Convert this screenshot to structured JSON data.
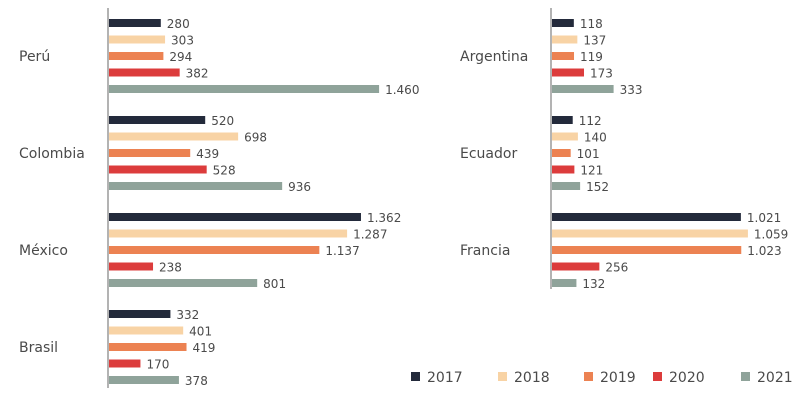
{
  "chart_data": {
    "type": "bar",
    "orientation": "horizontal",
    "title": "",
    "xlabel": "",
    "ylabel": "",
    "grid": false,
    "legend_position": "bottom-right",
    "series_names": [
      "2017",
      "2018",
      "2019",
      "2020",
      "2021"
    ],
    "colors": [
      "#232a3b",
      "#f8d3a5",
      "#ec8252",
      "#dc3c3c",
      "#8fa39a"
    ],
    "panels": [
      {
        "name": "left",
        "categories": [
          "Perú",
          "Colombia",
          "México",
          "Brasil"
        ],
        "series": [
          {
            "name": "2017",
            "values": [
              280,
              520,
              1362,
              332
            ],
            "labels": [
              "280",
              "520",
              "1.362",
              "332"
            ]
          },
          {
            "name": "2018",
            "values": [
              303,
              698,
              1287,
              401
            ],
            "labels": [
              "303",
              "698",
              "1.287",
              "401"
            ]
          },
          {
            "name": "2019",
            "values": [
              294,
              439,
              1137,
              419
            ],
            "labels": [
              "294",
              "439",
              "1.137",
              "419"
            ]
          },
          {
            "name": "2020",
            "values": [
              382,
              528,
              238,
              170
            ],
            "labels": [
              "382",
              "528",
              "238",
              "170"
            ]
          },
          {
            "name": "2021",
            "values": [
              1460,
              936,
              801,
              378
            ],
            "labels": [
              "1.460",
              "936",
              "801",
              "378"
            ]
          }
        ]
      },
      {
        "name": "right",
        "categories": [
          "Argentina",
          "Ecuador",
          "Francia"
        ],
        "series": [
          {
            "name": "2017",
            "values": [
              118,
              112,
              1021
            ],
            "labels": [
              "118",
              "112",
              "1.021"
            ]
          },
          {
            "name": "2018",
            "values": [
              137,
              140,
              1059
            ],
            "labels": [
              "137",
              "140",
              "1.059"
            ]
          },
          {
            "name": "2019",
            "values": [
              119,
              101,
              1023
            ],
            "labels": [
              "119",
              "101",
              "1.023"
            ]
          },
          {
            "name": "2020",
            "values": [
              173,
              121,
              256
            ],
            "labels": [
              "173",
              "121",
              "256"
            ]
          },
          {
            "name": "2021",
            "values": [
              333,
              152,
              132
            ],
            "labels": [
              "333",
              "152",
              "132"
            ]
          }
        ]
      }
    ]
  }
}
